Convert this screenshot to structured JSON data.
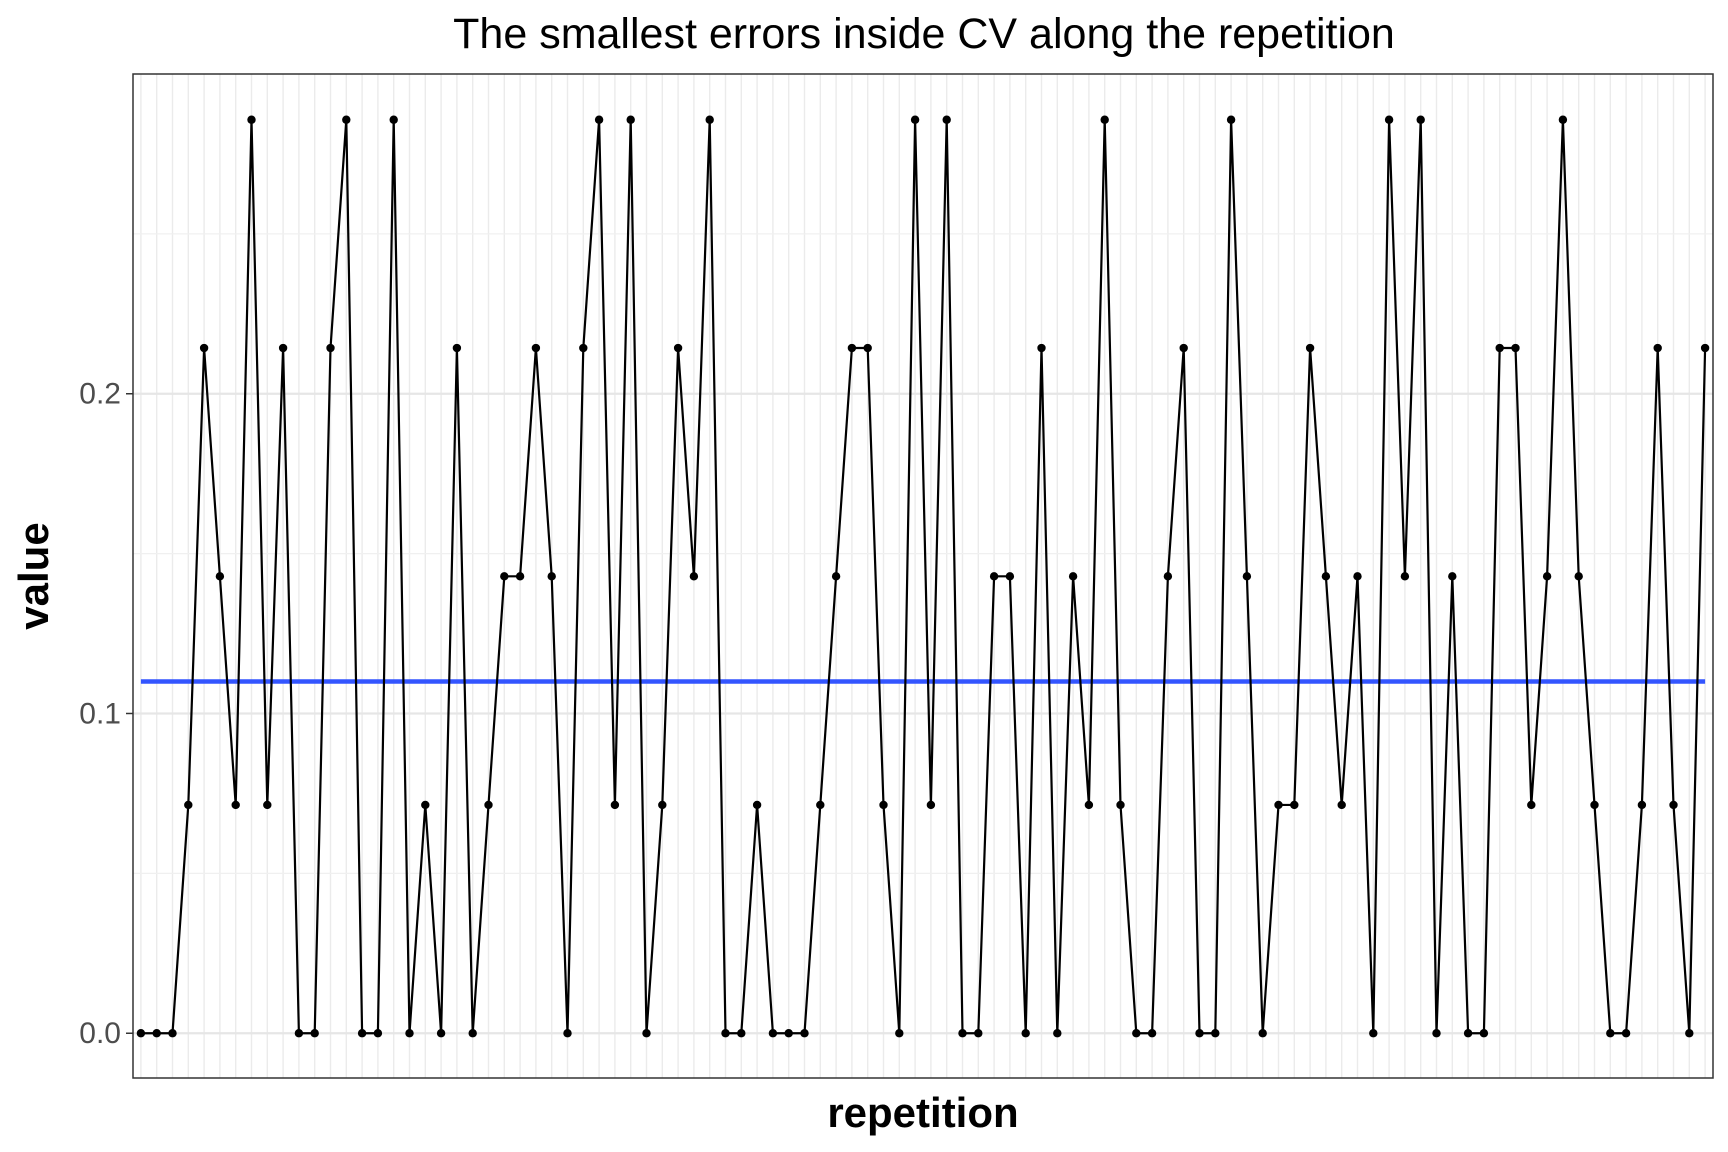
{
  "chart_data": {
    "type": "line",
    "title": "The smallest errors inside CV along the repetition",
    "xlabel": "repetition",
    "ylabel": "value",
    "ylim": [
      -0.014,
      0.3
    ],
    "xlim": [
      0.5,
      100.5
    ],
    "y_ticks": [
      "0.0",
      "0.1",
      "0.2"
    ],
    "y_tick_values": [
      0.0,
      0.1,
      0.2
    ],
    "y_minor_gridlines": [
      0.05,
      0.15,
      0.25
    ],
    "x_tick_labels": "none",
    "x_gridlines": "each repetition",
    "grid": true,
    "legend": "none",
    "reference_line": {
      "value": 0.11,
      "color": "#3355ff"
    },
    "series": [
      {
        "color": "#000000",
        "x": [
          1,
          2,
          3,
          4,
          5,
          6,
          7,
          8,
          9,
          10,
          11,
          12,
          13,
          14,
          15,
          16,
          17,
          18,
          19,
          20,
          21,
          22,
          23,
          24,
          25,
          26,
          27,
          28,
          29,
          30,
          31,
          32,
          33,
          34,
          35,
          36,
          37,
          38,
          39,
          40,
          41,
          42,
          43,
          44,
          45,
          46,
          47,
          48,
          49,
          50,
          51,
          52,
          53,
          54,
          55,
          56,
          57,
          58,
          59,
          60,
          61,
          62,
          63,
          64,
          65,
          66,
          67,
          68,
          69,
          70,
          71,
          72,
          73,
          74,
          75,
          76,
          77,
          78,
          79,
          80,
          81,
          82,
          83,
          84,
          85,
          86,
          87,
          88,
          89,
          90,
          91,
          92,
          93,
          94,
          95,
          96,
          97,
          98,
          99,
          100
        ],
        "values": [
          0,
          0,
          0,
          0.0714,
          0.2143,
          0.1429,
          0.0714,
          0.2857,
          0.0714,
          0.2143,
          0,
          0,
          0.2143,
          0.2857,
          0,
          0,
          0.2857,
          0,
          0.0714,
          0,
          0.2143,
          0,
          0.0714,
          0.1429,
          0.1429,
          0.2143,
          0.1429,
          0,
          0.2143,
          0.2857,
          0.0714,
          0.2857,
          0,
          0.0714,
          0.2143,
          0.1429,
          0.2857,
          0,
          0,
          0.0714,
          0,
          0,
          0,
          0.0714,
          0.1429,
          0.2143,
          0.2143,
          0.0714,
          0,
          0.2857,
          0.0714,
          0.2857,
          0,
          0,
          0.1429,
          0.1429,
          0,
          0.2143,
          0,
          0.1429,
          0.0714,
          0.2857,
          0.0714,
          0,
          0,
          0.1429,
          0.2143,
          0,
          0,
          0.2857,
          0.1429,
          0,
          0.0714,
          0.0714,
          0.2143,
          0.1429,
          0.0714,
          0.1429,
          0,
          0.2857,
          0.1429,
          0.2857,
          0,
          0.1429,
          0,
          0,
          0.2143,
          0.2143,
          0.0714,
          0.1429,
          0.2857,
          0.1429,
          0.0714,
          0,
          0,
          0.0714,
          0.2143,
          0.0714,
          0,
          0.2143
        ]
      }
    ]
  }
}
